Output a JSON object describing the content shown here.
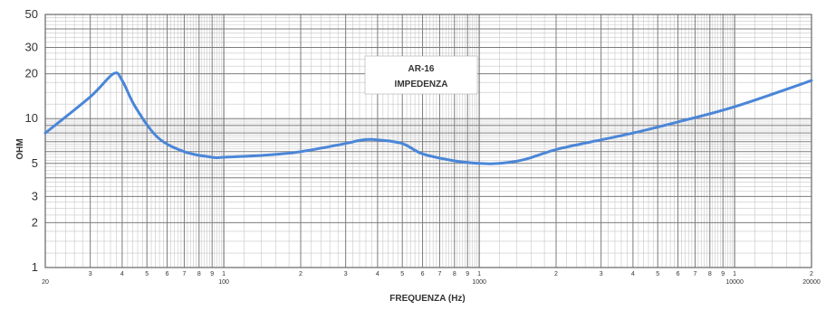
{
  "chart_data": {
    "type": "line",
    "title": "AR-16\nIMPEDENZA",
    "title_lines": [
      "AR-16",
      "IMPEDENZA"
    ],
    "xlabel": "FREQUENZA (Hz)",
    "ylabel": "OHM",
    "x_scale": "log",
    "y_scale": "log",
    "xlim": [
      20,
      20000
    ],
    "ylim": [
      1,
      50
    ],
    "grid": true,
    "y_ticks": [
      {
        "value": 1,
        "label": "1"
      },
      {
        "value": 2,
        "label": "2"
      },
      {
        "value": 3,
        "label": "3"
      },
      {
        "value": 5,
        "label": "5"
      },
      {
        "value": 10,
        "label": "10"
      },
      {
        "value": 20,
        "label": "20"
      },
      {
        "value": 30,
        "label": "30"
      },
      {
        "value": 50,
        "label": "50"
      }
    ],
    "x_major_ticks": [
      {
        "value": 20,
        "label": "20"
      },
      {
        "value": 100,
        "label": "100"
      },
      {
        "value": 1000,
        "label": "1000"
      },
      {
        "value": 10000,
        "label": "10000"
      },
      {
        "value": 20000,
        "label": "20000"
      }
    ],
    "x_minor_digits": [
      "2",
      "3",
      "4",
      "5",
      "6",
      "7",
      "8",
      "9",
      "1"
    ],
    "series": [
      {
        "color": "#4a86d8",
        "x": [
          20,
          30,
          37,
          40,
          45,
          55,
          70,
          90,
          100,
          150,
          200,
          300,
          350,
          400,
          500,
          600,
          800,
          1000,
          1200,
          1500,
          2000,
          3000,
          4000,
          6000,
          10000,
          20000
        ],
        "y": [
          8,
          14,
          20,
          18,
          12,
          7.5,
          6,
          5.5,
          5.5,
          5.7,
          6,
          6.8,
          7.2,
          7.2,
          6.8,
          5.8,
          5.2,
          5,
          5,
          5.3,
          6.2,
          7.2,
          8,
          9.5,
          12,
          18
        ]
      }
    ]
  }
}
